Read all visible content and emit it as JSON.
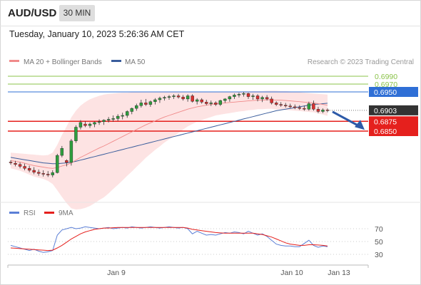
{
  "header": {
    "symbol": "AUD/USD",
    "timeframe": "30 MIN"
  },
  "datetime": "Tuesday, January 10, 2023 5:26:36 AM CET",
  "legend": {
    "ma20": "MA 20 + Bollinger Bands",
    "ma50": "MA 50",
    "credit": "Research © 2023 Trading Central"
  },
  "rsi_legend": {
    "rsi": "RSI",
    "ma": "9MA"
  },
  "colors": {
    "resistance": "#8bc34a",
    "pivot": "#2f6fd6",
    "support": "#e5201d",
    "current": "#333333",
    "up": "#2e9e3e",
    "down": "#d93030",
    "ma20": "#f08a8a",
    "ma50": "#3a5d9c",
    "band_fill": "#fde3e3",
    "rsi": "#5b7fd6",
    "rsi_ma": "#e5201d",
    "arrow": "#2d5aa8"
  },
  "chart_data": [
    {
      "type": "candlestick",
      "title": "AUD/USD",
      "levels": [
        {
          "value": 0.699,
          "label": "0.6990",
          "kind": "resistance"
        },
        {
          "value": 0.697,
          "label": "0.6970",
          "kind": "resistance"
        },
        {
          "value": 0.695,
          "label": "0.6950",
          "kind": "pivot"
        },
        {
          "value": 0.6903,
          "label": "0.6903",
          "kind": "current"
        },
        {
          "value": 0.6875,
          "label": "0.6875",
          "kind": "support"
        },
        {
          "value": 0.685,
          "label": "0.6850",
          "kind": "support"
        }
      ],
      "x_ticks": [
        "Jan 9",
        "Jan 10",
        "Jan 13"
      ],
      "ohlc": [
        [
          0.6771,
          0.6776,
          0.6764,
          0.6769
        ],
        [
          0.6768,
          0.6774,
          0.676,
          0.6765
        ],
        [
          0.6765,
          0.677,
          0.6755,
          0.676
        ],
        [
          0.676,
          0.6767,
          0.675,
          0.6755
        ],
        [
          0.6755,
          0.6762,
          0.6745,
          0.675
        ],
        [
          0.675,
          0.6758,
          0.674,
          0.6745
        ],
        [
          0.6745,
          0.6752,
          0.6736,
          0.6742
        ],
        [
          0.6742,
          0.675,
          0.6734,
          0.674
        ],
        [
          0.674,
          0.6748,
          0.6733,
          0.6738
        ],
        [
          0.6738,
          0.675,
          0.6732,
          0.6744
        ],
        [
          0.6744,
          0.6792,
          0.6742,
          0.6788
        ],
        [
          0.6788,
          0.6812,
          0.6783,
          0.6806
        ],
        [
          0.6775,
          0.6778,
          0.676,
          0.677
        ],
        [
          0.677,
          0.683,
          0.6762,
          0.6825
        ],
        [
          0.6825,
          0.6865,
          0.682,
          0.686
        ],
        [
          0.686,
          0.6878,
          0.6854,
          0.6872
        ],
        [
          0.6868,
          0.6875,
          0.686,
          0.6864
        ],
        [
          0.6864,
          0.6872,
          0.6858,
          0.6868
        ],
        [
          0.6868,
          0.6874,
          0.686,
          0.6872
        ],
        [
          0.6872,
          0.688,
          0.6866,
          0.6874
        ],
        [
          0.6874,
          0.688,
          0.6866,
          0.6878
        ],
        [
          0.6878,
          0.6886,
          0.6872,
          0.688
        ],
        [
          0.688,
          0.689,
          0.6874,
          0.6882
        ],
        [
          0.6882,
          0.6893,
          0.6876,
          0.6888
        ],
        [
          0.6888,
          0.6897,
          0.688,
          0.689
        ],
        [
          0.689,
          0.6903,
          0.6884,
          0.69
        ],
        [
          0.69,
          0.691,
          0.6893,
          0.6908
        ],
        [
          0.6908,
          0.692,
          0.6902,
          0.6915
        ],
        [
          0.6915,
          0.693,
          0.691,
          0.6922
        ],
        [
          0.6922,
          0.6932,
          0.6914,
          0.6918
        ],
        [
          0.6918,
          0.6928,
          0.6912,
          0.6925
        ],
        [
          0.6925,
          0.6934,
          0.6918,
          0.693
        ],
        [
          0.693,
          0.6938,
          0.6922,
          0.6934
        ],
        [
          0.6934,
          0.694,
          0.6928,
          0.6936
        ],
        [
          0.6936,
          0.6942,
          0.693,
          0.6938
        ],
        [
          0.6938,
          0.6944,
          0.6932,
          0.694
        ],
        [
          0.694,
          0.6945,
          0.6933,
          0.6937
        ],
        [
          0.6937,
          0.6942,
          0.6928,
          0.6932
        ],
        [
          0.6932,
          0.6944,
          0.6925,
          0.694
        ],
        [
          0.694,
          0.6944,
          0.6923,
          0.6926
        ],
        [
          0.6926,
          0.6934,
          0.6918,
          0.693
        ],
        [
          0.693,
          0.6934,
          0.692,
          0.6924
        ],
        [
          0.6924,
          0.693,
          0.6916,
          0.692
        ],
        [
          0.692,
          0.6928,
          0.6914,
          0.6922
        ],
        [
          0.6922,
          0.6926,
          0.6914,
          0.6918
        ],
        [
          0.6918,
          0.693,
          0.6914,
          0.6928
        ],
        [
          0.6928,
          0.6934,
          0.6922,
          0.6932
        ],
        [
          0.6932,
          0.694,
          0.6925,
          0.6938
        ],
        [
          0.6938,
          0.6946,
          0.6932,
          0.6942
        ],
        [
          0.6942,
          0.6948,
          0.6936,
          0.6944
        ],
        [
          0.6944,
          0.695,
          0.6938,
          0.6946
        ],
        [
          0.6946,
          0.6948,
          0.6932,
          0.6938
        ],
        [
          0.6938,
          0.6945,
          0.693,
          0.694
        ],
        [
          0.694,
          0.6944,
          0.6926,
          0.6932
        ],
        [
          0.6932,
          0.694,
          0.6924,
          0.6936
        ],
        [
          0.6936,
          0.6942,
          0.6928,
          0.6932
        ],
        [
          0.6932,
          0.6938,
          0.6918,
          0.6922
        ],
        [
          0.6922,
          0.6926,
          0.6914,
          0.6918
        ],
        [
          0.6918,
          0.6924,
          0.6912,
          0.6916
        ],
        [
          0.6916,
          0.6922,
          0.691,
          0.6914
        ],
        [
          0.6914,
          0.692,
          0.6908,
          0.6912
        ],
        [
          0.6912,
          0.6918,
          0.6906,
          0.691
        ],
        [
          0.691,
          0.6916,
          0.6904,
          0.6908
        ],
        [
          0.6908,
          0.6915,
          0.6902,
          0.6906
        ],
        [
          0.6906,
          0.6925,
          0.6902,
          0.692
        ],
        [
          0.692,
          0.6928,
          0.6902,
          0.6906
        ],
        [
          0.6906,
          0.6912,
          0.6896,
          0.69
        ],
        [
          0.69,
          0.6908,
          0.6896,
          0.6904
        ],
        [
          0.6904,
          0.6908,
          0.6898,
          0.6903
        ]
      ],
      "ma20": [
        0.6775,
        0.6773,
        0.6771,
        0.6768,
        0.6765,
        0.6762,
        0.676,
        0.6758,
        0.6756,
        0.6755,
        0.6757,
        0.6761,
        0.6764,
        0.6769,
        0.6776,
        0.6783,
        0.6789,
        0.6795,
        0.6801,
        0.6807,
        0.6812,
        0.6818,
        0.6824,
        0.683,
        0.6836,
        0.6842,
        0.6848,
        0.6854,
        0.686,
        0.6866,
        0.6871,
        0.6876,
        0.6881,
        0.6886,
        0.689,
        0.6894,
        0.6898,
        0.6902,
        0.6906,
        0.6909,
        0.6912,
        0.6914,
        0.6916,
        0.6918,
        0.692,
        0.6921,
        0.6922,
        0.6923,
        0.6924,
        0.6925,
        0.6926,
        0.6927,
        0.6928,
        0.6929,
        0.6929,
        0.693,
        0.693,
        0.6929,
        0.6929,
        0.6928,
        0.6927,
        0.6926,
        0.6925,
        0.6924,
        0.6923,
        0.6922,
        0.692,
        0.6918,
        0.6916
      ],
      "ma50": [
        0.6783,
        0.6781,
        0.6779,
        0.6777,
        0.6775,
        0.6773,
        0.6771,
        0.6769,
        0.6768,
        0.6767,
        0.6767,
        0.6768,
        0.6769,
        0.6771,
        0.6773,
        0.6776,
        0.6779,
        0.6782,
        0.6785,
        0.6788,
        0.6791,
        0.6794,
        0.6797,
        0.68,
        0.6803,
        0.6806,
        0.6809,
        0.6812,
        0.6815,
        0.6818,
        0.6821,
        0.6824,
        0.6827,
        0.683,
        0.6833,
        0.6836,
        0.6839,
        0.6842,
        0.6845,
        0.6848,
        0.6851,
        0.6854,
        0.6857,
        0.686,
        0.6863,
        0.6866,
        0.6869,
        0.6872,
        0.6875,
        0.6878,
        0.6881,
        0.6884,
        0.6887,
        0.689,
        0.6893,
        0.6896,
        0.6899,
        0.6902,
        0.6904,
        0.6906,
        0.6908,
        0.691,
        0.6912,
        0.6914,
        0.6916,
        0.6918,
        0.6919,
        0.692,
        0.6921
      ],
      "bb_upper": [
        0.6795,
        0.6794,
        0.6793,
        0.6792,
        0.6791,
        0.679,
        0.6789,
        0.6788,
        0.6789,
        0.6795,
        0.6815,
        0.684,
        0.6862,
        0.6885,
        0.6902,
        0.6915,
        0.6924,
        0.6931,
        0.6936,
        0.694,
        0.6943,
        0.6945,
        0.6946,
        0.6947,
        0.6948,
        0.6948,
        0.6949,
        0.6949,
        0.695,
        0.695,
        0.695,
        0.695,
        0.6951,
        0.6951,
        0.6951,
        0.6951,
        0.6951,
        0.695,
        0.695,
        0.695,
        0.695,
        0.695,
        0.695,
        0.695,
        0.695,
        0.695,
        0.695,
        0.695,
        0.695,
        0.695,
        0.6951,
        0.6951,
        0.6952,
        0.6952,
        0.6952,
        0.6953,
        0.6953,
        0.6953,
        0.6952,
        0.6952,
        0.6951,
        0.695,
        0.6949,
        0.6948,
        0.6947,
        0.6946,
        0.6945,
        0.6944,
        0.6943
      ],
      "bb_lower": [
        0.6755,
        0.6752,
        0.6749,
        0.6744,
        0.6739,
        0.6734,
        0.6731,
        0.6728,
        0.6723,
        0.6715,
        0.6699,
        0.6682,
        0.6666,
        0.6653,
        0.665,
        0.6651,
        0.6654,
        0.6659,
        0.6666,
        0.6674,
        0.6681,
        0.6691,
        0.6702,
        0.6713,
        0.6724,
        0.6736,
        0.6747,
        0.6759,
        0.677,
        0.6782,
        0.6792,
        0.6802,
        0.6811,
        0.6821,
        0.6829,
        0.6837,
        0.6845,
        0.6854,
        0.6862,
        0.6868,
        0.6874,
        0.6878,
        0.6882,
        0.6886,
        0.689,
        0.6892,
        0.6894,
        0.6896,
        0.6898,
        0.69,
        0.6901,
        0.6903,
        0.6904,
        0.6906,
        0.6906,
        0.6907,
        0.6907,
        0.6905,
        0.6906,
        0.6904,
        0.6903,
        0.6902,
        0.6901,
        0.69,
        0.6899,
        0.6898,
        0.6895,
        0.6892,
        0.6889
      ],
      "projection": {
        "from": 0.6903,
        "to": 0.6855
      }
    },
    {
      "type": "line",
      "title": "RSI",
      "y_ticks": [
        70,
        50,
        30
      ],
      "series": [
        {
          "name": "RSI",
          "values": [
            44,
            42,
            40,
            38,
            36,
            38,
            35,
            33,
            34,
            36,
            60,
            68,
            70,
            72,
            70,
            71,
            73,
            72,
            71,
            70,
            71,
            72,
            70,
            71,
            72,
            71,
            73,
            72,
            71,
            72,
            73,
            72,
            71,
            72,
            73,
            72,
            71,
            72,
            70,
            62,
            66,
            63,
            60,
            61,
            60,
            62,
            64,
            63,
            65,
            64,
            62,
            66,
            63,
            60,
            62,
            58,
            52,
            46,
            44,
            43,
            43,
            42,
            42,
            47,
            52,
            44,
            41,
            43,
            42
          ]
        },
        {
          "name": "9MA",
          "values": [
            40,
            39.5,
            39,
            38.5,
            38,
            37.5,
            37,
            36.5,
            36,
            36.5,
            40,
            44,
            49,
            54,
            58,
            62,
            65,
            67,
            69,
            70,
            71,
            71,
            71.5,
            72,
            72,
            72,
            72,
            72,
            72,
            72,
            72,
            72,
            72,
            72,
            72,
            72,
            72,
            72,
            71,
            69,
            68,
            67,
            66,
            65,
            64,
            63.5,
            63,
            63,
            63,
            63,
            63,
            63,
            63,
            62,
            61,
            59,
            57,
            54,
            51,
            48,
            46,
            45,
            44,
            44,
            45,
            45,
            44.5,
            44,
            43
          ]
        }
      ]
    }
  ]
}
